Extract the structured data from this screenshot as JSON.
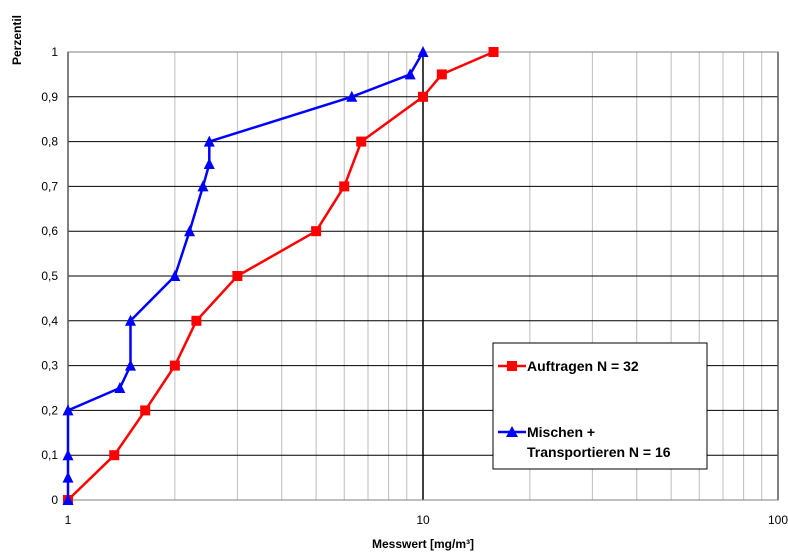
{
  "chart_data": {
    "type": "line",
    "xlabel": "Messwert [mg/m³]",
    "ylabel": "Perzentil",
    "xscale": "log",
    "xlim": [
      1,
      100
    ],
    "ylim": [
      0,
      1
    ],
    "x_ticks": [
      "1",
      "10",
      "100"
    ],
    "y_ticks": [
      "0",
      "0,1",
      "0,2",
      "0,3",
      "0,4",
      "0,5",
      "0,6",
      "0,7",
      "0,8",
      "0,9",
      "1"
    ],
    "grid": true,
    "legend_position": "lower-right",
    "series": [
      {
        "name": "Auftragen N =  32",
        "color": "#ff0000",
        "marker": "square",
        "x": [
          1.0,
          1.35,
          1.65,
          2.0,
          2.3,
          3.0,
          5.0,
          6.0,
          6.7,
          10.0,
          11.3,
          15.8
        ],
        "y": [
          0.0,
          0.1,
          0.2,
          0.3,
          0.4,
          0.5,
          0.6,
          0.7,
          0.8,
          0.9,
          0.95,
          1.0
        ]
      },
      {
        "name_lines": [
          "Mischen +",
          "Transportieren N =  16"
        ],
        "color": "#0000ff",
        "marker": "triangle",
        "x": [
          1.0,
          1.0,
          1.0,
          1.0,
          1.4,
          1.5,
          1.5,
          2.0,
          2.2,
          2.4,
          2.5,
          2.5,
          6.3,
          9.2,
          10.0
        ],
        "y": [
          0.0,
          0.05,
          0.1,
          0.2,
          0.25,
          0.3,
          0.4,
          0.5,
          0.6,
          0.7,
          0.75,
          0.8,
          0.9,
          0.95,
          1.0
        ]
      }
    ]
  }
}
